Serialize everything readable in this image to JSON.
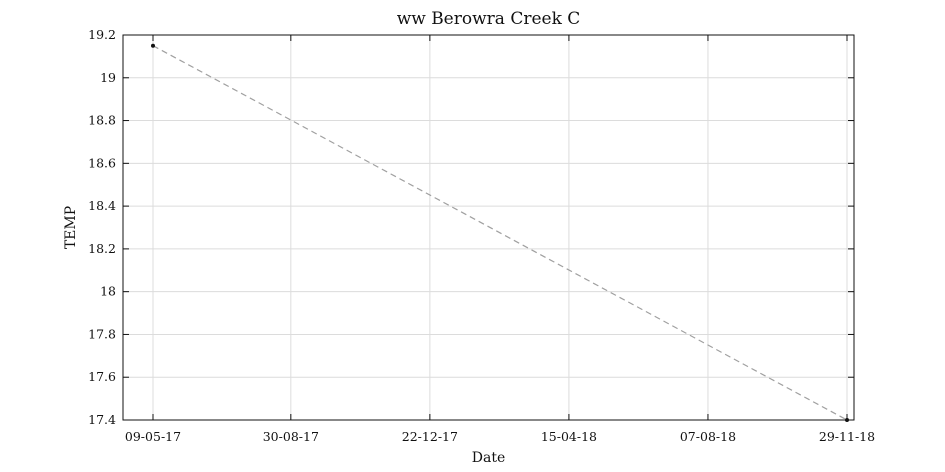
{
  "chart_data": {
    "type": "line",
    "title": "ww Berowra Creek C",
    "xlabel": "Date",
    "ylabel": "TEMP",
    "x_ticks": [
      "09-05-17",
      "30-08-17",
      "22-12-17",
      "15-04-18",
      "07-08-18",
      "29-11-18"
    ],
    "x_range": [
      "09-05-17",
      "29-11-18"
    ],
    "y_ticks": [
      "17.4",
      "17.6",
      "17.8",
      "18",
      "18.2",
      "18.4",
      "18.6",
      "18.8",
      "19",
      "19.2"
    ],
    "ylim": [
      17.4,
      19.2
    ],
    "grid": true,
    "series": [
      {
        "x": [
          "09-05-17",
          "29-11-18"
        ],
        "y": [
          19.15,
          17.4
        ],
        "line_style": "dashed",
        "line_color": "#a0a0a0",
        "marker_color": "#111111"
      }
    ]
  }
}
